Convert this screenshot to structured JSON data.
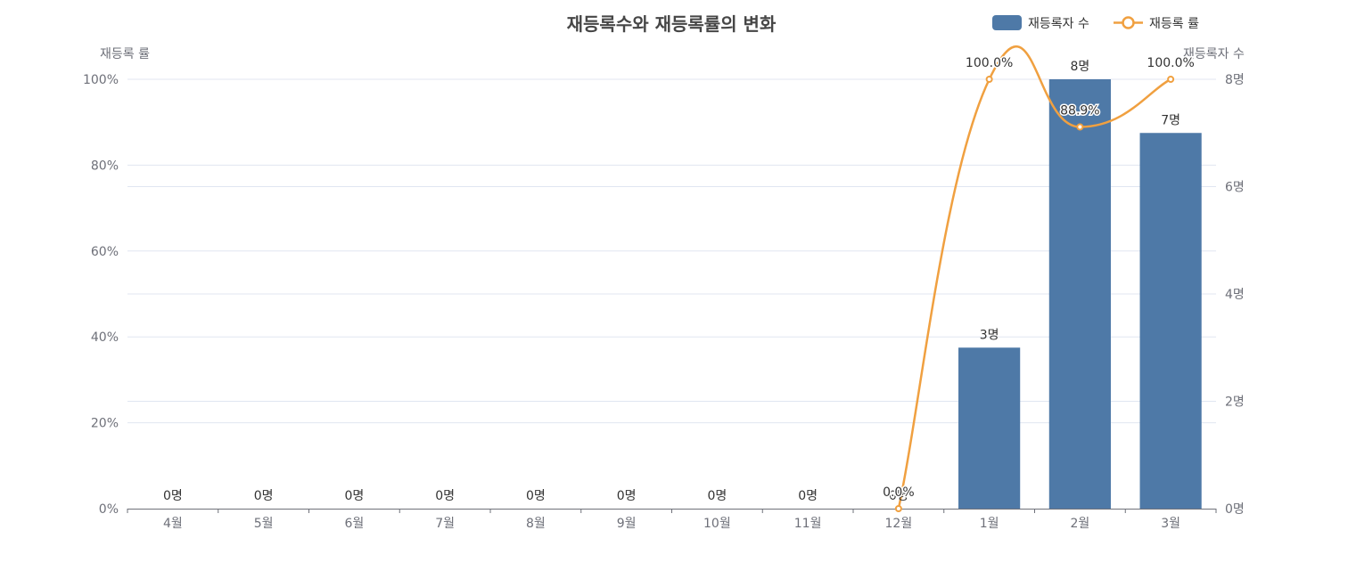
{
  "chart_data": {
    "type": "bar",
    "title": "재등록수와 재등록률의 변화",
    "categories": [
      "4월",
      "5월",
      "6월",
      "7월",
      "8월",
      "9월",
      "10월",
      "11월",
      "12월",
      "1월",
      "2월",
      "3월"
    ],
    "series": [
      {
        "name": "재등록자 수",
        "type": "bar",
        "axis": "right",
        "color": "#4e79a7",
        "values": [
          0,
          0,
          0,
          0,
          0,
          0,
          0,
          0,
          0,
          3,
          8,
          7
        ],
        "labels": [
          "0명",
          "0명",
          "0명",
          "0명",
          "0명",
          "0명",
          "0명",
          "0명",
          "0명",
          "3명",
          "8명",
          "7명"
        ]
      },
      {
        "name": "재등록 률",
        "type": "line",
        "axis": "left",
        "color": "#f0a040",
        "smooth": true,
        "values": [
          null,
          null,
          null,
          null,
          null,
          null,
          null,
          null,
          0.0,
          100.0,
          88.9,
          100.0
        ],
        "labels": [
          null,
          null,
          null,
          null,
          null,
          null,
          null,
          null,
          "0.0%",
          "100.0%",
          "88.9%",
          "100.0%"
        ]
      }
    ],
    "y_left": {
      "name": "재등록 률",
      "range": [
        0,
        100
      ],
      "ticks": [
        "0%",
        "20%",
        "40%",
        "60%",
        "80%",
        "100%"
      ]
    },
    "y_right": {
      "name": "재등록자 수",
      "range": [
        0,
        8
      ],
      "ticks": [
        "0명",
        "2명",
        "4명",
        "6명",
        "8명"
      ]
    },
    "grid": true,
    "legend_position": "top-right"
  }
}
